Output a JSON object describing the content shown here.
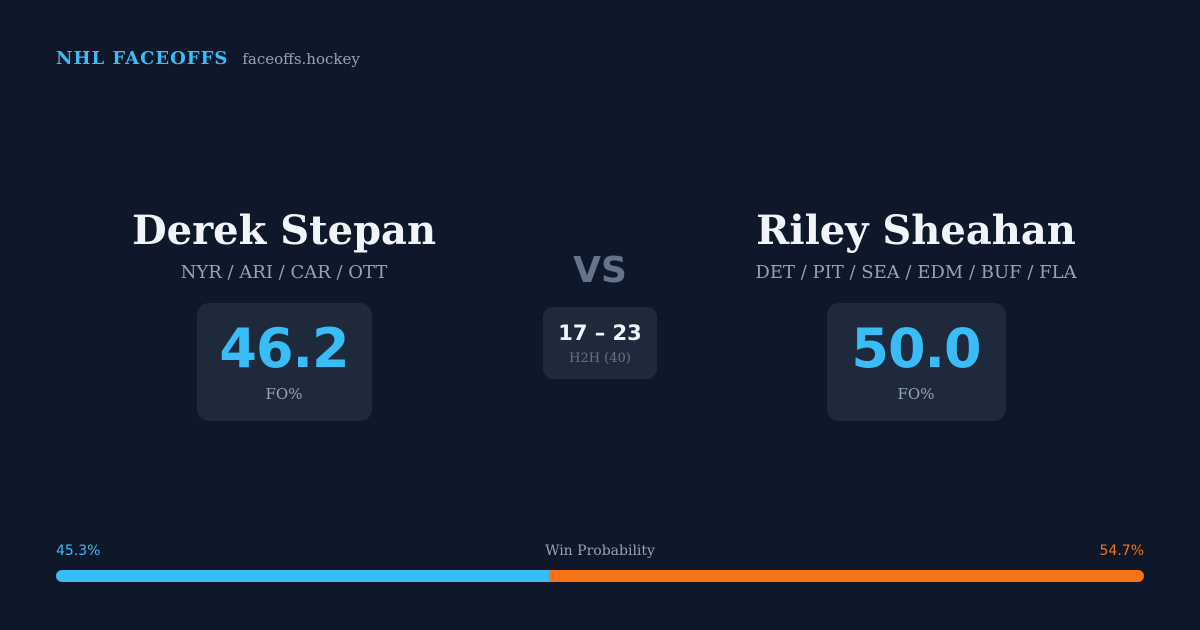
{
  "brand": {
    "name": "NHL FACEOFFS",
    "url": "faceoffs.hockey"
  },
  "players": [
    {
      "name": "Derek Stepan",
      "teams": "NYR / ARI / CAR / OTT",
      "stat_value": "46.2",
      "stat_label": "FO%"
    },
    {
      "name": "Riley Sheahan",
      "teams": "DET / PIT / SEA / EDM / BUF / FLA",
      "stat_value": "50.0",
      "stat_label": "FO%"
    }
  ],
  "versus": {
    "label": "VS",
    "score": "17 – 23",
    "h2h": "H2H (40)"
  },
  "win_probability": {
    "title": "Win Probability",
    "left_label": "45.3%",
    "right_label": "54.7%",
    "left_fraction": 0.453,
    "colors": {
      "left": "#38bdf8",
      "right": "#f97316"
    }
  }
}
